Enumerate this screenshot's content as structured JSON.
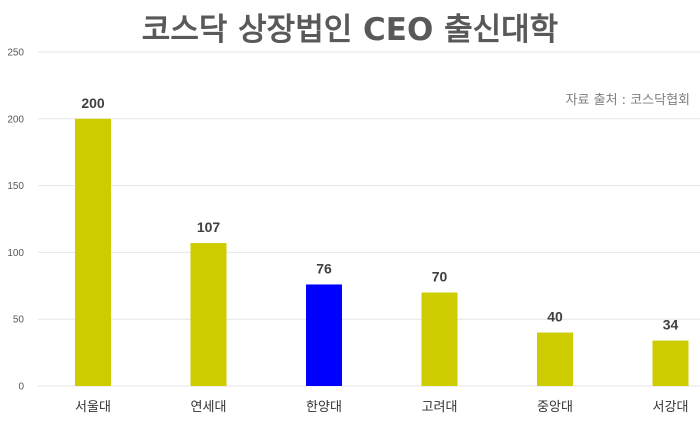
{
  "chart_data": {
    "type": "bar",
    "title": "코스닥 상장법인 CEO 출신대학",
    "source": "자료 출처 : 코스닥협회",
    "xlabel": "",
    "ylabel": "",
    "categories": [
      "서울대",
      "연세대",
      "한양대",
      "고려대",
      "중앙대",
      "서강대"
    ],
    "values": [
      200,
      107,
      76,
      70,
      40,
      34
    ],
    "data_labels": [
      "200",
      "107",
      "76",
      "70",
      "40",
      "34"
    ],
    "ylim": [
      0,
      250
    ],
    "yticks": [
      0,
      50,
      100,
      150,
      200,
      250
    ],
    "ytick_labels": [
      "0",
      "50",
      "100",
      "150",
      "200",
      "250"
    ],
    "grid": true,
    "legend": "none",
    "colors": {
      "default_bar": "#cccc00",
      "highlight_bar": "#0000ff",
      "highlight_category": "한양대",
      "grid": "#e6e6e6"
    }
  }
}
